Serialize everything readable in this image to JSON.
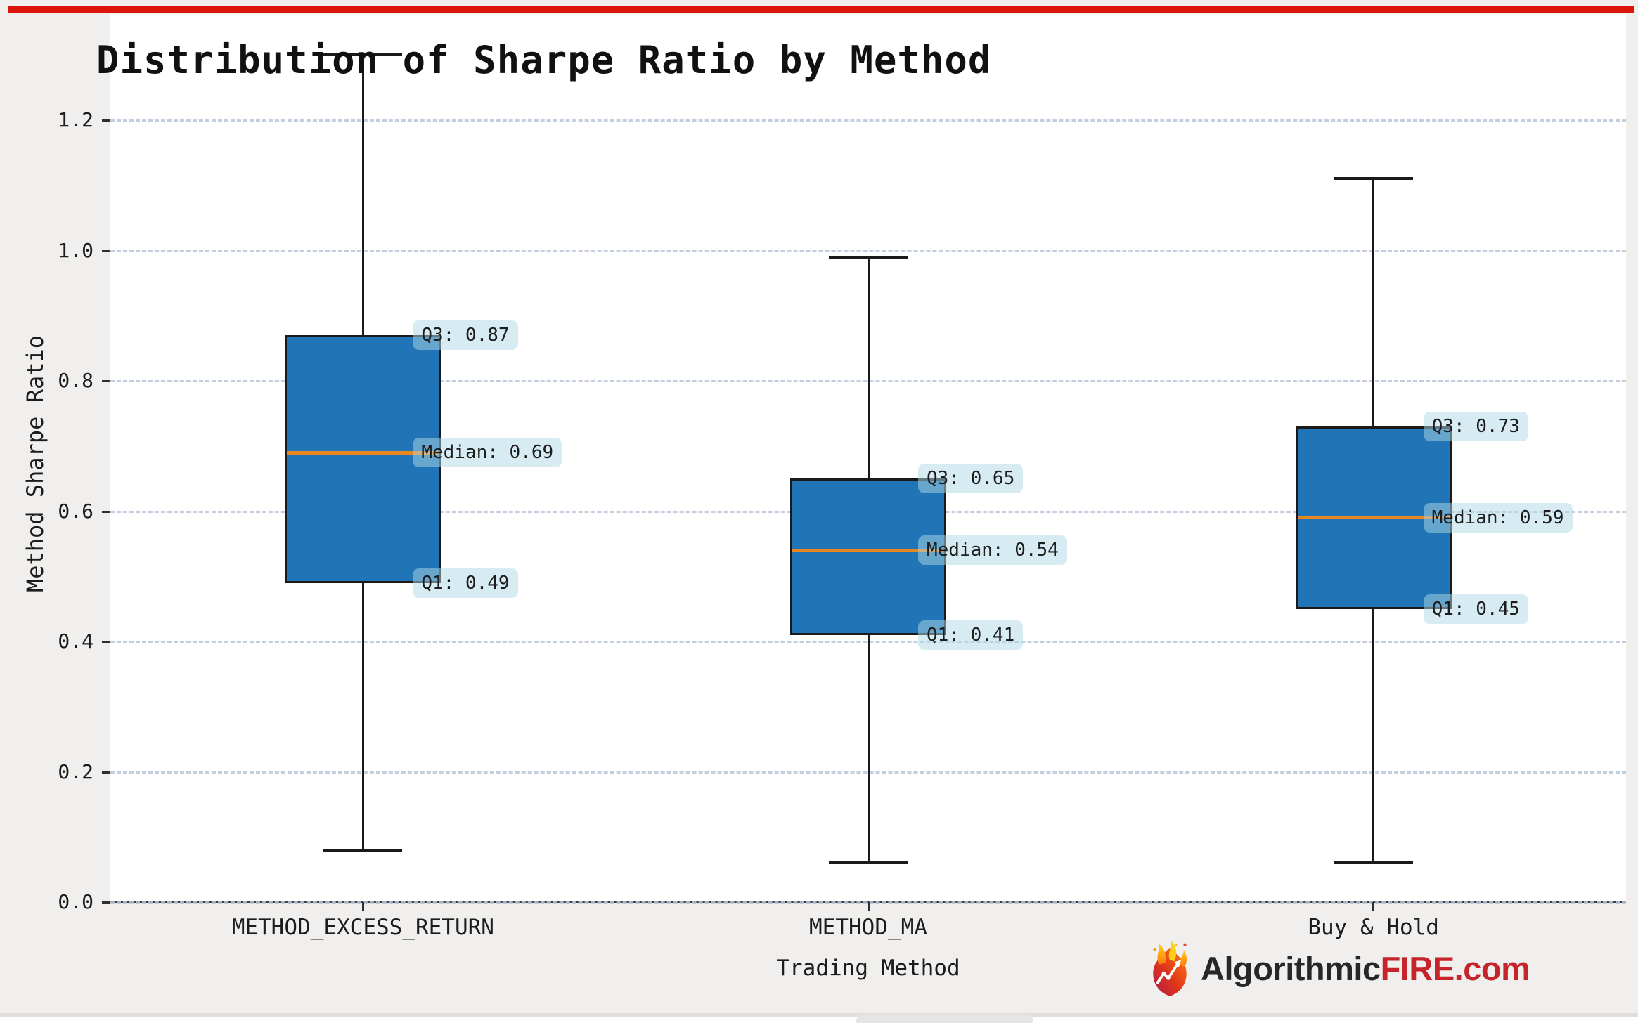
{
  "window": {
    "top_bar_color": "#db150c",
    "background_color": "#f0efed"
  },
  "chart_data": {
    "type": "box",
    "title": "Distribution of Sharpe Ratio by Method",
    "xlabel": "Trading Method",
    "ylabel": "Method Sharpe Ratio",
    "categories": [
      "METHOD_EXCESS_RETURN",
      "METHOD_MA",
      "Buy & Hold"
    ],
    "ytick_labels": [
      "0.0",
      "0.2",
      "0.4",
      "0.6",
      "0.8",
      "1.0",
      "1.2"
    ],
    "ylim": [
      0.0,
      1.36
    ],
    "grid": "horizontal-dashed",
    "legend": "none",
    "series": [
      {
        "name": "METHOD_EXCESS_RETURN",
        "whisker_low": 0.08,
        "q1": 0.49,
        "median": 0.69,
        "q3": 0.87,
        "whisker_high": 1.3,
        "labels": {
          "q3": "Q3: 0.87",
          "median": "Median: 0.69",
          "q1": "Q1: 0.49"
        }
      },
      {
        "name": "METHOD_MA",
        "whisker_low": 0.06,
        "q1": 0.41,
        "median": 0.54,
        "q3": 0.65,
        "whisker_high": 0.99,
        "labels": {
          "q3": "Q3: 0.65",
          "median": "Median: 0.54",
          "q1": "Q1: 0.41"
        }
      },
      {
        "name": "Buy & Hold",
        "whisker_low": 0.06,
        "q1": 0.45,
        "median": 0.59,
        "q3": 0.73,
        "whisker_high": 1.11,
        "labels": {
          "q3": "Q3: 0.73",
          "median": "Median: 0.59",
          "q1": "Q1: 0.45"
        }
      }
    ],
    "colors": {
      "box_fill": "#2174b5",
      "box_edge": "#1a1a1a",
      "median_line": "#e8871e",
      "gridline": "#b9c7da",
      "annotation_bbox": "rgba(173,216,230,0.5)"
    }
  },
  "watermark": {
    "text_black": "Algorithmic",
    "text_red": "FIRE.com",
    "red_color": "#c5242b",
    "icon": "flame-chart-icon"
  }
}
